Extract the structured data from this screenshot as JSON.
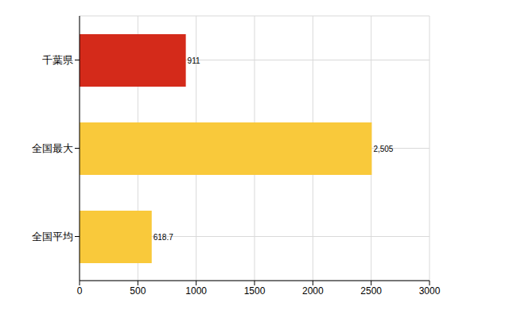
{
  "chart_data": {
    "type": "bar",
    "orientation": "horizontal",
    "categories": [
      "千葉県",
      "全国最大",
      "全国平均"
    ],
    "values": [
      911,
      2505,
      618.7
    ],
    "value_labels": [
      "911",
      "2,505",
      "618.7"
    ],
    "colors": [
      "#d42a1a",
      "#f9c93b",
      "#f9c93b"
    ],
    "xlim": [
      0,
      3000
    ],
    "xticks": [
      0,
      500,
      1000,
      1500,
      2000,
      2500,
      3000
    ],
    "grid": true,
    "data_labels": true
  }
}
